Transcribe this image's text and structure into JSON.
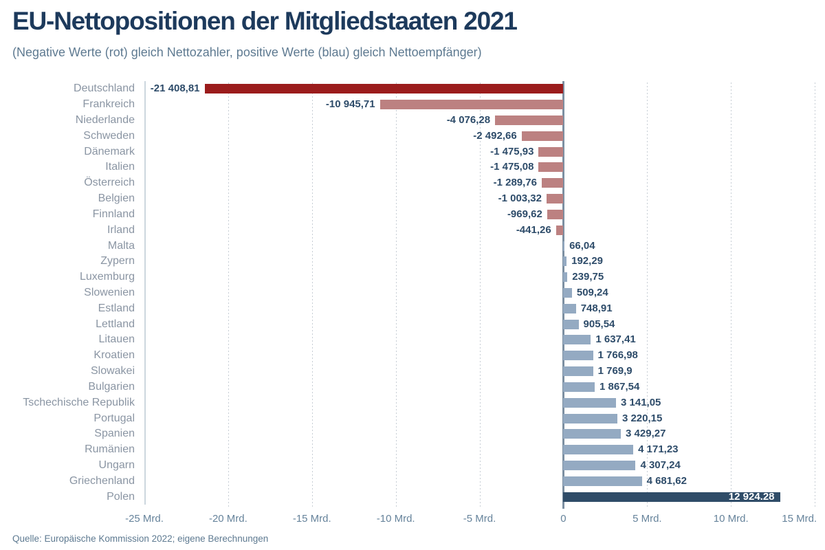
{
  "header": {
    "title": "EU-Nettopositionen der Mitgliedstaaten 2021",
    "subtitle": "(Negative Werte (rot) gleich Nettozahler, positive Werte (blau) gleich Nettoempfänger)"
  },
  "footer": {
    "source": "Quelle: Europäische Kommission 2022; eigene Berechnungen"
  },
  "palette": {
    "negative_strong": "#9b1c1c",
    "negative": "#bc8181",
    "positive": "#94aac2",
    "positive_strong": "#2f4c68",
    "zero_line": "#7d90a2",
    "grid": "#c6cdd4",
    "title_text": "#1d3a5c",
    "value_text": "#2e4c6a",
    "country_text": "#8a95a3",
    "axis_text": "#66839b"
  },
  "chart_data": {
    "type": "bar",
    "orientation": "horizontal",
    "title": "EU-Nettopositionen der Mitgliedstaaten 2021",
    "xlabel": "",
    "ylabel": "",
    "grid": true,
    "legend": false,
    "xlim": [
      -25,
      15.2
    ],
    "x_ticks": [
      {
        "value": -25,
        "label": "-25 Mrd."
      },
      {
        "value": -20,
        "label": "-20 Mrd."
      },
      {
        "value": -15,
        "label": "-15 Mrd."
      },
      {
        "value": -10,
        "label": "-10 Mrd."
      },
      {
        "value": -5,
        "label": "-5 Mrd."
      },
      {
        "value": 0,
        "label": "0"
      },
      {
        "value": 5,
        "label": "5 Mrd."
      },
      {
        "value": 10,
        "label": "10 Mrd."
      },
      {
        "value": 15,
        "label": "15 Mrd."
      }
    ],
    "items": [
      {
        "country": "Deutschland",
        "value": -21408.81,
        "label": "-21 408,81",
        "color": "negative_strong",
        "label_inside": false
      },
      {
        "country": "Frankreich",
        "value": -10945.71,
        "label": "-10 945,71",
        "color": "negative",
        "label_inside": false
      },
      {
        "country": "Niederlande",
        "value": -4076.28,
        "label": "-4 076,28",
        "color": "negative",
        "label_inside": false
      },
      {
        "country": "Schweden",
        "value": -2492.66,
        "label": "-2 492,66",
        "color": "negative",
        "label_inside": false
      },
      {
        "country": "Dänemark",
        "value": -1475.93,
        "label": "-1 475,93",
        "color": "negative",
        "label_inside": false
      },
      {
        "country": "Italien",
        "value": -1475.08,
        "label": "-1 475,08",
        "color": "negative",
        "label_inside": false
      },
      {
        "country": "Österreich",
        "value": -1289.76,
        "label": "-1 289,76",
        "color": "negative",
        "label_inside": false
      },
      {
        "country": "Belgien",
        "value": -1003.32,
        "label": "-1 003,32",
        "color": "negative",
        "label_inside": false
      },
      {
        "country": "Finnland",
        "value": -969.62,
        "label": "-969,62",
        "color": "negative",
        "label_inside": false
      },
      {
        "country": "Irland",
        "value": -441.26,
        "label": "-441,26",
        "color": "negative",
        "label_inside": false
      },
      {
        "country": "Malta",
        "value": 66.04,
        "label": "66,04",
        "color": "positive",
        "label_inside": false
      },
      {
        "country": "Zypern",
        "value": 192.29,
        "label": "192,29",
        "color": "positive",
        "label_inside": false
      },
      {
        "country": "Luxemburg",
        "value": 239.75,
        "label": "239,75",
        "color": "positive",
        "label_inside": false
      },
      {
        "country": "Slowenien",
        "value": 509.24,
        "label": "509,24",
        "color": "positive",
        "label_inside": false
      },
      {
        "country": "Estland",
        "value": 748.91,
        "label": "748,91",
        "color": "positive",
        "label_inside": false
      },
      {
        "country": "Lettland",
        "value": 905.54,
        "label": "905,54",
        "color": "positive",
        "label_inside": false
      },
      {
        "country": "Litauen",
        "value": 1637.41,
        "label": "1 637,41",
        "color": "positive",
        "label_inside": false
      },
      {
        "country": "Kroatien",
        "value": 1766.98,
        "label": "1 766,98",
        "color": "positive",
        "label_inside": false
      },
      {
        "country": "Slowakei",
        "value": 1769.9,
        "label": "1 769,9",
        "color": "positive",
        "label_inside": false
      },
      {
        "country": "Bulgarien",
        "value": 1867.54,
        "label": "1 867,54",
        "color": "positive",
        "label_inside": false
      },
      {
        "country": "Tschechische Republik",
        "value": 3141.05,
        "label": "3 141,05",
        "color": "positive",
        "label_inside": false
      },
      {
        "country": "Portugal",
        "value": 3220.15,
        "label": "3 220,15",
        "color": "positive",
        "label_inside": false
      },
      {
        "country": "Spanien",
        "value": 3429.27,
        "label": "3 429,27",
        "color": "positive",
        "label_inside": false
      },
      {
        "country": "Rumänien",
        "value": 4171.23,
        "label": "4 171,23",
        "color": "positive",
        "label_inside": false
      },
      {
        "country": "Ungarn",
        "value": 4307.24,
        "label": "4 307,24",
        "color": "positive",
        "label_inside": false
      },
      {
        "country": "Griechenland",
        "value": 4681.62,
        "label": "4 681,62",
        "color": "positive",
        "label_inside": false
      },
      {
        "country": "Polen",
        "value": 12924.28,
        "label": "12 924.28",
        "color": "positive_strong",
        "label_inside": true
      }
    ]
  }
}
